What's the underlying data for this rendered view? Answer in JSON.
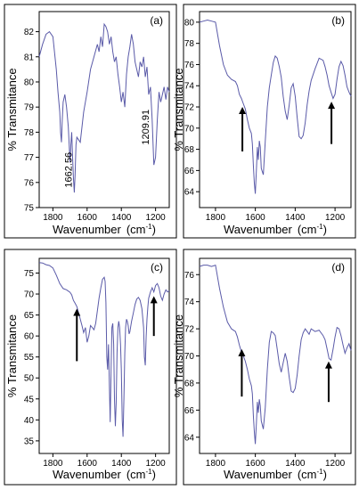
{
  "colors": {
    "line": "#5a5aa8",
    "axes": "#000000",
    "background": "#ffffff"
  },
  "chart_data": [
    {
      "type": "line",
      "panel": "(a)",
      "xlabel": "Wavenumber",
      "xunit": "(cm",
      "xunit_sup": "-1",
      "xunit_close": ")",
      "ylabel": "% Transmitance",
      "xlim": [
        1880,
        1120
      ],
      "ylim": [
        75,
        82.8
      ],
      "xticks": [
        1800,
        1600,
        1400,
        1200
      ],
      "yticks": [
        75,
        76,
        77,
        78,
        79,
        80,
        81,
        82
      ],
      "annotations": [
        {
          "text": "1662.56",
          "x": 1690,
          "y": 76.5
        },
        {
          "text": "1209.91",
          "x": 1240,
          "y": 78.2
        }
      ],
      "arrows": [],
      "x": [
        1880,
        1860,
        1840,
        1820,
        1800,
        1780,
        1770,
        1760,
        1755,
        1750,
        1745,
        1740,
        1730,
        1720,
        1710,
        1700,
        1695,
        1690,
        1685,
        1680,
        1675,
        1670,
        1665,
        1660,
        1650,
        1640,
        1620,
        1600,
        1580,
        1560,
        1540,
        1530,
        1520,
        1510,
        1500,
        1490,
        1480,
        1470,
        1460,
        1450,
        1440,
        1430,
        1420,
        1410,
        1400,
        1390,
        1380,
        1370,
        1360,
        1350,
        1340,
        1330,
        1320,
        1310,
        1300,
        1290,
        1280,
        1270,
        1260,
        1250,
        1240,
        1230,
        1220,
        1210,
        1200,
        1190,
        1180,
        1170,
        1160,
        1150,
        1140,
        1130,
        1120
      ],
      "y": [
        81.0,
        81.5,
        81.9,
        82.0,
        81.8,
        80.5,
        79.6,
        78.8,
        78.0,
        77.6,
        78.5,
        79.2,
        79.5,
        79.0,
        78.2,
        76.8,
        77.5,
        78.0,
        77.0,
        76.2,
        75.6,
        76.3,
        77.5,
        77.8,
        77.7,
        77.6,
        78.8,
        79.6,
        80.5,
        81.0,
        81.5,
        81.2,
        81.8,
        81.4,
        82.3,
        82.2,
        82.0,
        81.5,
        81.8,
        81.2,
        80.8,
        81.0,
        80.3,
        79.8,
        79.2,
        79.6,
        79.0,
        80.3,
        81.0,
        81.4,
        81.9,
        81.5,
        80.8,
        80.5,
        80.2,
        80.8,
        80.6,
        81.0,
        80.2,
        80.6,
        79.5,
        79.8,
        78.5,
        76.7,
        77.0,
        78.5,
        79.6,
        79.2,
        79.5,
        79.8,
        79.3,
        79.8,
        79.6
      ]
    },
    {
      "type": "line",
      "panel": "(b)",
      "xlabel": "Wavenumber",
      "xunit": "(cm",
      "xunit_sup": "-1",
      "xunit_close": ")",
      "ylabel": "% Transmitance",
      "xlim": [
        1880,
        1120
      ],
      "ylim": [
        62.5,
        81
      ],
      "xticks": [
        1800,
        1600,
        1400,
        1200
      ],
      "yticks": [
        64,
        66,
        68,
        70,
        72,
        74,
        76,
        78,
        80
      ],
      "annotations": [],
      "arrows": [
        {
          "x": 1665,
          "y_tail": 67.8,
          "y_head": 72.0
        },
        {
          "x": 1218,
          "y_tail": 68.5,
          "y_head": 72.5
        }
      ],
      "x": [
        1880,
        1860,
        1840,
        1820,
        1800,
        1780,
        1760,
        1740,
        1720,
        1700,
        1690,
        1680,
        1670,
        1660,
        1650,
        1640,
        1630,
        1620,
        1615,
        1610,
        1605,
        1600,
        1595,
        1590,
        1585,
        1580,
        1575,
        1570,
        1560,
        1550,
        1540,
        1530,
        1520,
        1510,
        1500,
        1490,
        1480,
        1470,
        1460,
        1450,
        1440,
        1430,
        1420,
        1410,
        1400,
        1390,
        1380,
        1370,
        1360,
        1350,
        1340,
        1330,
        1320,
        1300,
        1280,
        1260,
        1250,
        1240,
        1230,
        1220,
        1210,
        1200,
        1190,
        1180,
        1170,
        1160,
        1150,
        1140,
        1130,
        1120
      ],
      "y": [
        80.0,
        80.1,
        80.2,
        80.1,
        80.0,
        77.8,
        76.0,
        75.0,
        74.6,
        74.4,
        74.0,
        73.2,
        72.8,
        72.3,
        71.8,
        70.8,
        70.0,
        69.5,
        68.5,
        66.5,
        64.8,
        63.8,
        66.0,
        68.2,
        67.0,
        68.8,
        68.2,
        66.2,
        65.6,
        68.8,
        72.0,
        73.8,
        75.0,
        76.2,
        76.8,
        76.6,
        75.8,
        74.8,
        73.0,
        71.6,
        70.8,
        72.2,
        73.8,
        74.2,
        73.0,
        71.0,
        69.2,
        69.0,
        69.3,
        70.5,
        72.2,
        73.5,
        74.5,
        75.6,
        76.6,
        76.4,
        75.8,
        75.0,
        74.0,
        73.4,
        72.8,
        73.2,
        74.6,
        75.8,
        76.3,
        75.9,
        75.0,
        73.9,
        73.4,
        73.0
      ]
    },
    {
      "type": "line",
      "panel": "(c)",
      "xlabel": "Wavenumber",
      "xunit": "(cm",
      "xunit_sup": "-1",
      "xunit_close": ")",
      "ylabel": "% Transmitance",
      "xlim": [
        1880,
        1120
      ],
      "ylim": [
        32,
        78.5
      ],
      "xticks": [
        1800,
        1600,
        1400,
        1200
      ],
      "yticks": [
        35,
        40,
        45,
        50,
        55,
        60,
        65,
        70,
        75
      ],
      "annotations": [],
      "arrows": [
        {
          "x": 1660,
          "y_tail": 54.0,
          "y_head": 66.5
        },
        {
          "x": 1210,
          "y_tail": 60.0,
          "y_head": 69.5
        }
      ],
      "x": [
        1880,
        1860,
        1840,
        1820,
        1800,
        1780,
        1760,
        1740,
        1720,
        1700,
        1690,
        1680,
        1670,
        1660,
        1650,
        1640,
        1630,
        1620,
        1610,
        1600,
        1590,
        1580,
        1570,
        1560,
        1550,
        1540,
        1530,
        1520,
        1510,
        1500,
        1495,
        1490,
        1485,
        1480,
        1475,
        1470,
        1465,
        1460,
        1455,
        1450,
        1445,
        1440,
        1435,
        1430,
        1425,
        1420,
        1415,
        1410,
        1405,
        1400,
        1395,
        1390,
        1385,
        1380,
        1375,
        1370,
        1365,
        1360,
        1355,
        1350,
        1340,
        1330,
        1320,
        1310,
        1300,
        1290,
        1280,
        1270,
        1265,
        1260,
        1255,
        1250,
        1245,
        1240,
        1230,
        1220,
        1210,
        1200,
        1190,
        1180,
        1170,
        1160,
        1150,
        1140,
        1130,
        1120
      ],
      "y": [
        77.5,
        77.4,
        77.0,
        76.8,
        76.2,
        74.5,
        72.5,
        71.3,
        71.0,
        70.4,
        69.8,
        68.5,
        67.8,
        67.0,
        65.5,
        64.0,
        62.5,
        60.8,
        62.0,
        58.5,
        60.0,
        62.5,
        62.0,
        61.5,
        63.0,
        66.0,
        69.0,
        71.5,
        73.5,
        74.0,
        73.0,
        68.0,
        55.0,
        52.0,
        58.0,
        48.0,
        39.5,
        52.0,
        62.0,
        63.0,
        58.0,
        45.0,
        38.5,
        44.0,
        56.0,
        62.0,
        63.5,
        62.0,
        58.0,
        52.0,
        40.0,
        36.0,
        45.0,
        56.0,
        62.0,
        64.0,
        63.5,
        62.5,
        60.5,
        61.0,
        63.5,
        65.5,
        67.5,
        68.8,
        69.2,
        68.5,
        66.5,
        62.0,
        55.0,
        53.0,
        60.0,
        64.0,
        67.0,
        69.0,
        70.5,
        71.5,
        70.5,
        72.0,
        72.5,
        71.5,
        69.5,
        68.5,
        70.0,
        71.0,
        70.5,
        70.8
      ]
    },
    {
      "type": "line",
      "panel": "(d)",
      "xlabel": "Wavenumber",
      "xunit": "(cm",
      "xunit_sup": "-1",
      "xunit_close": ")",
      "ylabel": "% Transmitance",
      "xlim": [
        1880,
        1120
      ],
      "ylim": [
        62.8,
        77.2
      ],
      "xticks": [
        1800,
        1600,
        1400,
        1200
      ],
      "yticks": [
        64,
        66,
        68,
        70,
        72,
        74,
        76
      ],
      "annotations": [],
      "arrows": [
        {
          "x": 1668,
          "y_tail": 67.0,
          "y_head": 70.5
        },
        {
          "x": 1232,
          "y_tail": 66.6,
          "y_head": 69.6
        }
      ],
      "x": [
        1880,
        1860,
        1840,
        1820,
        1800,
        1780,
        1760,
        1740,
        1720,
        1700,
        1690,
        1680,
        1670,
        1660,
        1650,
        1640,
        1630,
        1620,
        1615,
        1610,
        1605,
        1600,
        1595,
        1590,
        1585,
        1580,
        1575,
        1570,
        1560,
        1550,
        1540,
        1530,
        1520,
        1510,
        1500,
        1490,
        1480,
        1470,
        1460,
        1450,
        1440,
        1430,
        1420,
        1410,
        1400,
        1390,
        1380,
        1370,
        1360,
        1350,
        1340,
        1330,
        1320,
        1300,
        1280,
        1260,
        1250,
        1240,
        1230,
        1220,
        1210,
        1200,
        1190,
        1180,
        1170,
        1160,
        1150,
        1140,
        1130,
        1120
      ],
      "y": [
        76.6,
        76.7,
        76.7,
        76.6,
        76.7,
        75.0,
        73.6,
        72.5,
        72.0,
        71.8,
        71.4,
        70.8,
        70.3,
        70.0,
        69.6,
        69.0,
        68.3,
        67.8,
        67.2,
        65.6,
        64.4,
        63.5,
        65.0,
        66.6,
        65.8,
        66.8,
        66.3,
        65.2,
        64.6,
        66.2,
        69.0,
        71.0,
        71.8,
        71.7,
        71.5,
        70.5,
        69.4,
        68.8,
        69.5,
        70.2,
        69.6,
        68.4,
        67.4,
        67.3,
        67.6,
        68.6,
        70.0,
        71.2,
        71.7,
        72.0,
        71.8,
        71.6,
        72.0,
        71.8,
        71.9,
        71.5,
        71.2,
        70.5,
        69.8,
        69.7,
        70.5,
        71.4,
        72.1,
        72.0,
        71.5,
        70.8,
        70.2,
        70.6,
        70.9,
        70.4
      ]
    }
  ]
}
